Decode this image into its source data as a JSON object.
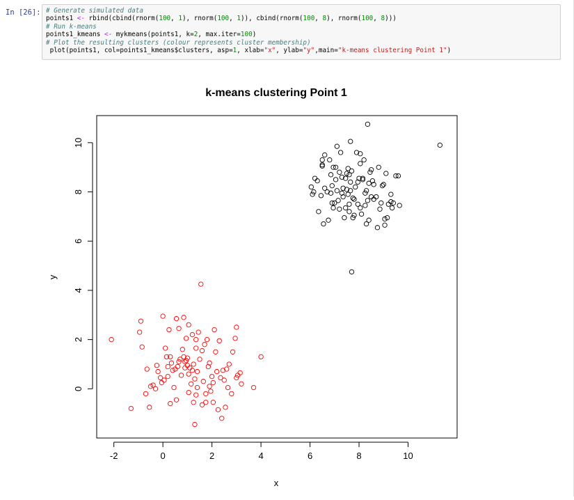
{
  "cell": {
    "prompt": "In [26]:",
    "lines": [
      [
        {
          "t": "# Generate simulated data",
          "c": "cm"
        }
      ],
      [
        {
          "t": "points1 ",
          "c": ""
        },
        {
          "t": "<-",
          "c": "op"
        },
        {
          "t": " rbind(cbind(rnorm(",
          "c": ""
        },
        {
          "t": "100",
          "c": "num"
        },
        {
          "t": ", ",
          "c": ""
        },
        {
          "t": "1",
          "c": "num"
        },
        {
          "t": "), rnorm(",
          "c": ""
        },
        {
          "t": "100",
          "c": "num"
        },
        {
          "t": ", ",
          "c": ""
        },
        {
          "t": "1",
          "c": "num"
        },
        {
          "t": ")), cbind(rnorm(",
          "c": ""
        },
        {
          "t": "100",
          "c": "num"
        },
        {
          "t": ", ",
          "c": ""
        },
        {
          "t": "8",
          "c": "num"
        },
        {
          "t": "), rnorm(",
          "c": ""
        },
        {
          "t": "100",
          "c": "num"
        },
        {
          "t": ", ",
          "c": ""
        },
        {
          "t": "8",
          "c": "num"
        },
        {
          "t": ")))",
          "c": ""
        }
      ],
      [
        {
          "t": "# Run k-means",
          "c": "cm"
        }
      ],
      [
        {
          "t": "points1_kmeans ",
          "c": ""
        },
        {
          "t": "<-",
          "c": "op"
        },
        {
          "t": " mykmeans(points1, k=",
          "c": ""
        },
        {
          "t": "2",
          "c": "num"
        },
        {
          "t": ", max.iter=",
          "c": ""
        },
        {
          "t": "100",
          "c": "num"
        },
        {
          "t": ")",
          "c": ""
        }
      ],
      [
        {
          "t": "# Plot the resulting clusters (colour represents cluster membership)",
          "c": "cm"
        }
      ],
      [
        {
          "t": " plot(points1, col=points1_kmeans$clusters, asp=",
          "c": ""
        },
        {
          "t": "1",
          "c": "num"
        },
        {
          "t": ", xlab=",
          "c": ""
        },
        {
          "t": "\"x\"",
          "c": "str"
        },
        {
          "t": ", ylab=",
          "c": ""
        },
        {
          "t": "\"y\"",
          "c": "str"
        },
        {
          "t": ",main=",
          "c": ""
        },
        {
          "t": "\"k-means clustering Point 1\"",
          "c": "str"
        },
        {
          "t": ")",
          "c": ""
        }
      ]
    ]
  },
  "chart_data": {
    "type": "scatter",
    "title": "k-means clustering Point 1",
    "xlabel": "x",
    "ylabel": "y",
    "xlim": [
      -2.7,
      12.0
    ],
    "ylim": [
      -2.0,
      11.1
    ],
    "x_ticks": [
      -2,
      0,
      2,
      4,
      6,
      8,
      10
    ],
    "y_ticks": [
      0,
      2,
      4,
      6,
      8,
      10
    ],
    "grid": false,
    "legend": "none",
    "series": [
      {
        "color": "#ff0000",
        "points": [
          [
            -2.1,
            2.0
          ],
          [
            -0.9,
            2.75
          ],
          [
            -0.95,
            2.3
          ],
          [
            -0.85,
            1.7
          ],
          [
            -0.65,
            0.8
          ],
          [
            -0.7,
            -0.2
          ],
          [
            -0.5,
            0.1
          ],
          [
            -0.55,
            -0.75
          ],
          [
            -0.4,
            0.15
          ],
          [
            -0.3,
            0.0
          ],
          [
            -0.25,
            0.95
          ],
          [
            -0.2,
            0.7
          ],
          [
            -0.1,
            0.45
          ],
          [
            -0.05,
            0.25
          ],
          [
            0.0,
            2.95
          ],
          [
            0.05,
            0.35
          ],
          [
            0.1,
            1.65
          ],
          [
            0.15,
            1.3
          ],
          [
            0.2,
            0.9
          ],
          [
            0.25,
            2.4
          ],
          [
            0.3,
            -0.6
          ],
          [
            0.35,
            1.05
          ],
          [
            0.4,
            0.75
          ],
          [
            0.45,
            0.05
          ],
          [
            0.5,
            0.8
          ],
          [
            0.55,
            -0.45
          ],
          [
            0.55,
            2.85
          ],
          [
            0.6,
            0.9
          ],
          [
            0.65,
            1.1
          ],
          [
            0.65,
            2.45
          ],
          [
            0.7,
            1.2
          ],
          [
            0.75,
            0.55
          ],
          [
            0.8,
            1.6
          ],
          [
            0.85,
            1.3
          ],
          [
            0.85,
            2.9
          ],
          [
            0.9,
            1.1
          ],
          [
            0.95,
            2.05
          ],
          [
            1.0,
            1.25
          ],
          [
            1.0,
            0.95
          ],
          [
            1.05,
            -0.15
          ],
          [
            1.05,
            2.6
          ],
          [
            1.1,
            0.85
          ],
          [
            1.15,
            0.2
          ],
          [
            1.2,
            0.75
          ],
          [
            1.2,
            2.2
          ],
          [
            1.25,
            -0.55
          ],
          [
            1.3,
            -1.45
          ],
          [
            1.3,
            0.4
          ],
          [
            1.35,
            1.65
          ],
          [
            1.35,
            2.0
          ],
          [
            1.4,
            0.05
          ],
          [
            1.4,
            0.7
          ],
          [
            1.45,
            2.3
          ],
          [
            1.5,
            1.2
          ],
          [
            1.55,
            4.25
          ],
          [
            1.6,
            -0.65
          ],
          [
            1.65,
            0.3
          ],
          [
            1.7,
            1.8
          ],
          [
            1.75,
            -0.2
          ],
          [
            1.8,
            2.0
          ],
          [
            1.85,
            0.9
          ],
          [
            1.9,
            1.05
          ],
          [
            1.95,
            -0.1
          ],
          [
            2.0,
            0.5
          ],
          [
            2.05,
            -0.55
          ],
          [
            2.1,
            2.4
          ],
          [
            2.15,
            1.5
          ],
          [
            2.2,
            0.7
          ],
          [
            2.25,
            -0.85
          ],
          [
            2.3,
            1.95
          ],
          [
            2.35,
            0.45
          ],
          [
            2.4,
            -1.2
          ],
          [
            2.5,
            0.35
          ],
          [
            2.55,
            -0.75
          ],
          [
            2.6,
            0.8
          ],
          [
            2.65,
            0.05
          ],
          [
            2.7,
            1.0
          ],
          [
            2.8,
            -0.2
          ],
          [
            2.85,
            1.5
          ],
          [
            2.95,
            2.05
          ],
          [
            3.0,
            2.5
          ],
          [
            3.05,
            0.55
          ],
          [
            3.15,
            0.65
          ],
          [
            3.2,
            0.2
          ],
          [
            3.7,
            0.05
          ],
          [
            3.0,
            0.45
          ],
          [
            2.05,
            0.25
          ],
          [
            1.6,
            1.55
          ],
          [
            0.95,
            1.15
          ],
          [
            1.05,
            0.6
          ],
          [
            0.9,
            0.85
          ],
          [
            0.3,
            1.3
          ],
          [
            -1.3,
            -0.8
          ],
          [
            1.75,
            -0.55
          ],
          [
            1.25,
            1.0
          ],
          [
            1.9,
            0.1
          ],
          [
            2.45,
            0.75
          ],
          [
            4.0,
            1.3
          ],
          [
            1.35,
            -0.25
          ],
          [
            0.2,
            0.5
          ]
        ]
      },
      {
        "color": "#000000",
        "points": [
          [
            11.3,
            9.9
          ],
          [
            8.35,
            10.75
          ],
          [
            7.65,
            10.05
          ],
          [
            7.7,
            4.75
          ],
          [
            6.05,
            8.2
          ],
          [
            6.1,
            7.9
          ],
          [
            6.2,
            8.55
          ],
          [
            6.3,
            8.45
          ],
          [
            6.35,
            7.2
          ],
          [
            6.45,
            7.85
          ],
          [
            6.5,
            9.05
          ],
          [
            6.5,
            9.3
          ],
          [
            6.55,
            6.7
          ],
          [
            6.6,
            9.5
          ],
          [
            6.7,
            8.0
          ],
          [
            6.75,
            6.85
          ],
          [
            6.8,
            9.3
          ],
          [
            6.85,
            8.7
          ],
          [
            6.85,
            7.95
          ],
          [
            6.9,
            8.25
          ],
          [
            6.95,
            9.0
          ],
          [
            7.0,
            7.55
          ],
          [
            7.05,
            8.5
          ],
          [
            7.1,
            9.85
          ],
          [
            7.1,
            8.05
          ],
          [
            7.15,
            7.65
          ],
          [
            7.2,
            7.3
          ],
          [
            7.25,
            9.6
          ],
          [
            7.3,
            8.6
          ],
          [
            7.35,
            7.8
          ],
          [
            7.35,
            8.15
          ],
          [
            7.4,
            6.95
          ],
          [
            7.45,
            7.35
          ],
          [
            7.5,
            8.75
          ],
          [
            7.5,
            8.1
          ],
          [
            7.55,
            8.95
          ],
          [
            7.6,
            7.2
          ],
          [
            7.6,
            7.5
          ],
          [
            7.65,
            8.4
          ],
          [
            7.7,
            8.85
          ],
          [
            7.75,
            7.75
          ],
          [
            7.8,
            7.05
          ],
          [
            7.85,
            8.2
          ],
          [
            7.9,
            9.6
          ],
          [
            7.95,
            7.5
          ],
          [
            8.0,
            8.55
          ],
          [
            8.05,
            9.15
          ],
          [
            8.1,
            7.1
          ],
          [
            8.15,
            8.5
          ],
          [
            8.2,
            9.3
          ],
          [
            8.25,
            7.95
          ],
          [
            8.3,
            6.7
          ],
          [
            8.35,
            7.65
          ],
          [
            8.4,
            8.35
          ],
          [
            8.45,
            8.8
          ],
          [
            8.5,
            7.8
          ],
          [
            8.55,
            8.45
          ],
          [
            8.6,
            8.3
          ],
          [
            8.7,
            7.8
          ],
          [
            8.75,
            6.55
          ],
          [
            8.8,
            9.0
          ],
          [
            8.9,
            7.55
          ],
          [
            8.95,
            8.25
          ],
          [
            9.0,
            8.3
          ],
          [
            9.05,
            6.65
          ],
          [
            9.05,
            6.9
          ],
          [
            9.1,
            8.75
          ],
          [
            9.2,
            7.5
          ],
          [
            9.3,
            7.6
          ],
          [
            9.35,
            7.35
          ],
          [
            9.4,
            7.55
          ],
          [
            9.5,
            8.65
          ],
          [
            9.6,
            8.65
          ],
          [
            9.65,
            7.45
          ],
          [
            7.8,
            7.7
          ],
          [
            7.55,
            7.9
          ],
          [
            7.95,
            8.4
          ],
          [
            8.15,
            8.55
          ],
          [
            7.3,
            7.95
          ],
          [
            7.65,
            8.05
          ],
          [
            8.5,
            8.9
          ],
          [
            7.05,
            9.0
          ],
          [
            8.6,
            7.7
          ],
          [
            6.6,
            8.15
          ],
          [
            6.95,
            7.35
          ],
          [
            8.05,
            9.55
          ],
          [
            7.45,
            8.55
          ],
          [
            7.75,
            6.95
          ],
          [
            8.4,
            6.85
          ],
          [
            6.9,
            7.55
          ],
          [
            8.3,
            8.05
          ],
          [
            6.5,
            9.1
          ],
          [
            6.15,
            8.0
          ],
          [
            7.6,
            8.7
          ],
          [
            8.25,
            7.45
          ],
          [
            7.2,
            8.8
          ],
          [
            8.85,
            7.3
          ],
          [
            9.3,
            7.9
          ],
          [
            8.05,
            7.35
          ],
          [
            9.15,
            6.95
          ]
        ]
      }
    ]
  }
}
